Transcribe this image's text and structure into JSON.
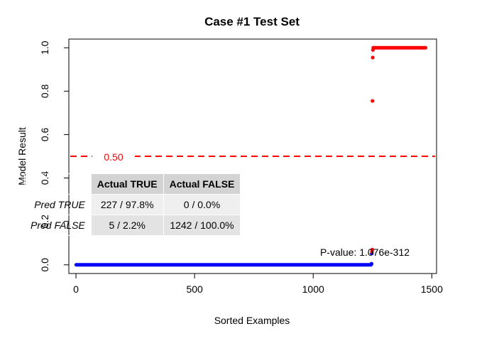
{
  "chart_data": {
    "type": "scatter",
    "title": "Case #1 Test Set",
    "xlabel": "Sorted Examples",
    "ylabel": "Model Result",
    "xlim": [
      -30,
      1520
    ],
    "ylim": [
      -0.04,
      1.04
    ],
    "x_ticks": [
      0,
      500,
      1000,
      1500
    ],
    "y_ticks": [
      0.0,
      0.2,
      0.4,
      0.6,
      0.8,
      1.0
    ],
    "x_tick_labels": [
      "0",
      "500",
      "1000",
      "1500"
    ],
    "y_tick_labels": [
      "0.0",
      "0.2",
      "0.4",
      "0.6",
      "0.8",
      "1.0"
    ],
    "grid": false,
    "series": [
      {
        "color": "#0000ff",
        "segments": [
          {
            "x_start": 1,
            "x_end": 1244,
            "y": 0.0
          }
        ],
        "points": [
          {
            "x": 1245,
            "y": 0.003
          },
          {
            "x": 1246,
            "y": 0.005
          },
          {
            "x": 1247,
            "y": 0.052
          }
        ]
      },
      {
        "color": "#ff0000",
        "points": [
          {
            "x": 1248,
            "y": 0.06
          },
          {
            "x": 1249,
            "y": 0.07
          },
          {
            "x": 1250,
            "y": 0.755
          },
          {
            "x": 1251,
            "y": 0.955
          },
          {
            "x": 1252,
            "y": 0.99
          }
        ],
        "segments": [
          {
            "x_start": 1253,
            "x_end": 1474,
            "y": 1.0
          }
        ]
      }
    ],
    "threshold": {
      "y": 0.5,
      "label": "0.50",
      "color": "#ff0000"
    },
    "pvalue_text": "P-value: 1.076e-312"
  },
  "confusion_table": {
    "columns": [
      "Actual TRUE",
      "Actual FALSE"
    ],
    "rows": [
      {
        "label": "Pred TRUE",
        "cells": [
          "227 / 97.8%",
          "0 / 0.0%"
        ]
      },
      {
        "label": "Pred FALSE",
        "cells": [
          "5 / 2.2%",
          "1242 / 100.0%"
        ]
      }
    ]
  }
}
